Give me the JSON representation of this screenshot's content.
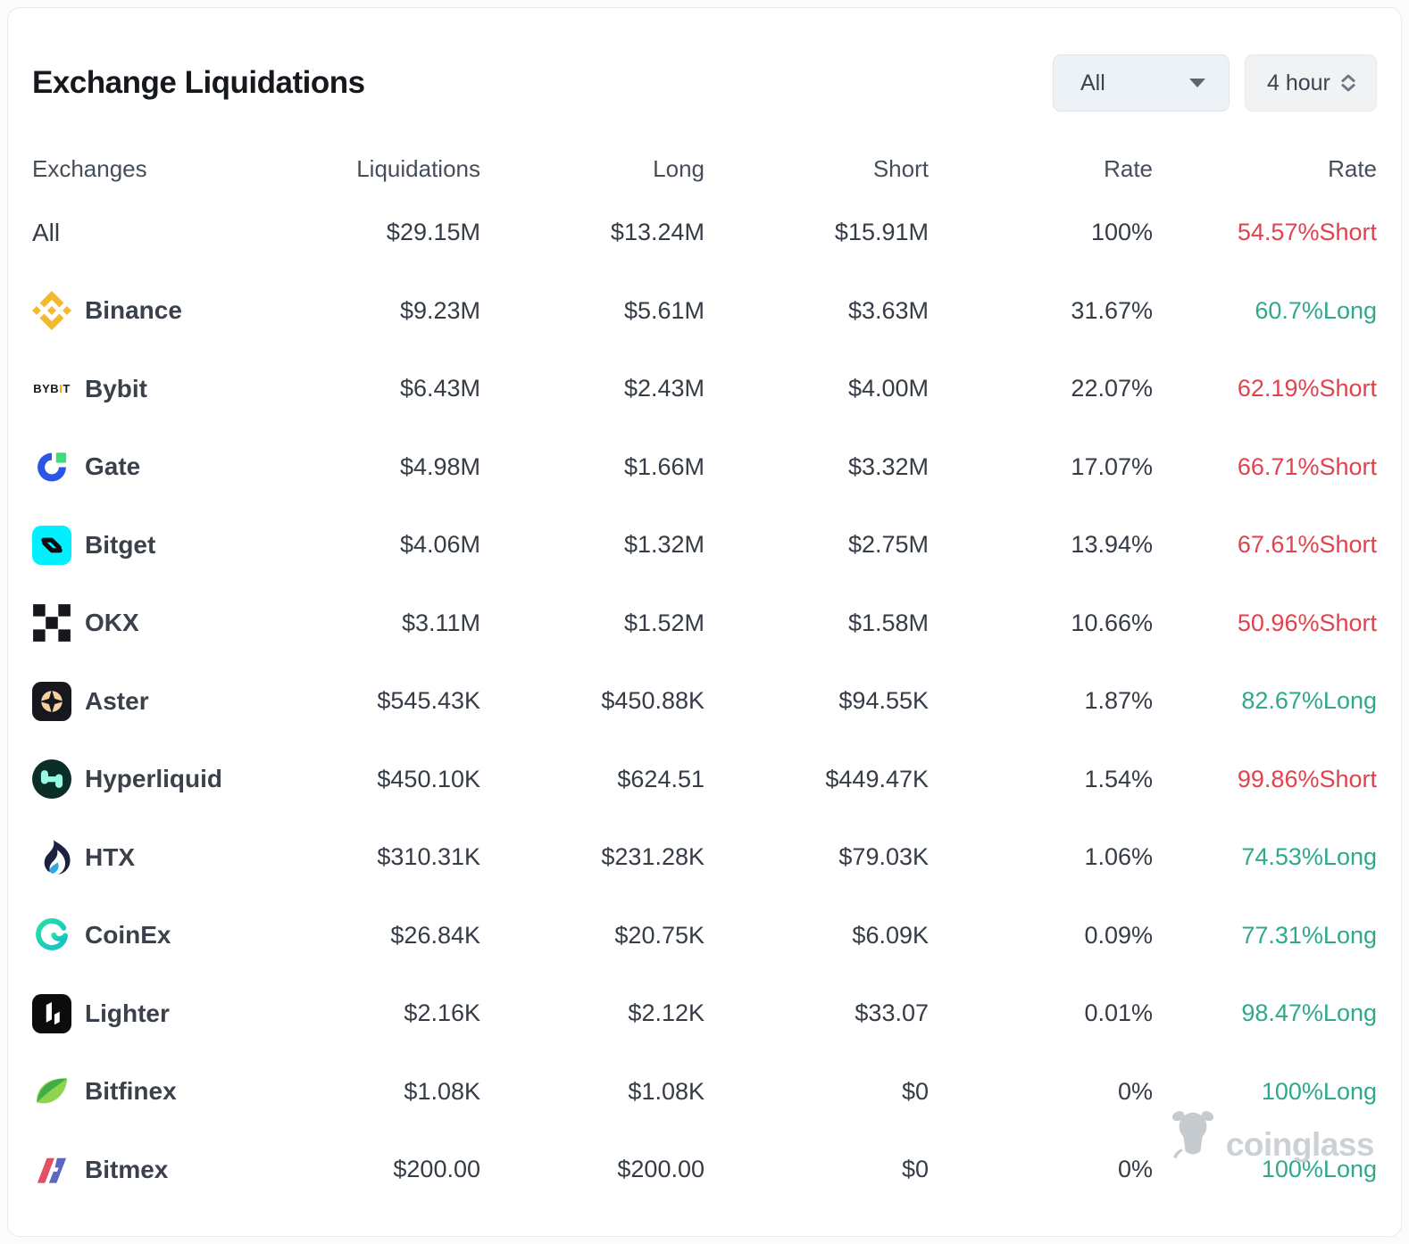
{
  "card": {
    "title": "Exchange Liquidations",
    "filters": {
      "symbol": {
        "value": "All",
        "icon": "chevron-down-icon"
      },
      "interval": {
        "value": "4 hour",
        "icon": "up-down-chevrons-icon"
      }
    },
    "watermark": {
      "label": "coinglass",
      "icon": "coinglass-bull-icon"
    }
  },
  "colors": {
    "long": "#2fa88c",
    "short": "#e2424e"
  },
  "table": {
    "headers": [
      "Exchanges",
      "Liquidations",
      "Long",
      "Short",
      "Rate",
      "Rate"
    ],
    "rows": [
      {
        "exchange": "All",
        "icon": null,
        "liquidations": "$29.15M",
        "long": "$13.24M",
        "short": "$15.91M",
        "rate": "100%",
        "side_rate": "54.57%Short",
        "side": "short"
      },
      {
        "exchange": "Binance",
        "icon": "binance-icon",
        "liquidations": "$9.23M",
        "long": "$5.61M",
        "short": "$3.63M",
        "rate": "31.67%",
        "side_rate": "60.7%Long",
        "side": "long"
      },
      {
        "exchange": "Bybit",
        "icon": "bybit-icon",
        "liquidations": "$6.43M",
        "long": "$2.43M",
        "short": "$4.00M",
        "rate": "22.07%",
        "side_rate": "62.19%Short",
        "side": "short"
      },
      {
        "exchange": "Gate",
        "icon": "gate-icon",
        "liquidations": "$4.98M",
        "long": "$1.66M",
        "short": "$3.32M",
        "rate": "17.07%",
        "side_rate": "66.71%Short",
        "side": "short"
      },
      {
        "exchange": "Bitget",
        "icon": "bitget-icon",
        "liquidations": "$4.06M",
        "long": "$1.32M",
        "short": "$2.75M",
        "rate": "13.94%",
        "side_rate": "67.61%Short",
        "side": "short"
      },
      {
        "exchange": "OKX",
        "icon": "okx-icon",
        "liquidations": "$3.11M",
        "long": "$1.52M",
        "short": "$1.58M",
        "rate": "10.66%",
        "side_rate": "50.96%Short",
        "side": "short"
      },
      {
        "exchange": "Aster",
        "icon": "aster-icon",
        "liquidations": "$545.43K",
        "long": "$450.88K",
        "short": "$94.55K",
        "rate": "1.87%",
        "side_rate": "82.67%Long",
        "side": "long"
      },
      {
        "exchange": "Hyperliquid",
        "icon": "hyperliquid-icon",
        "liquidations": "$450.10K",
        "long": "$624.51",
        "short": "$449.47K",
        "rate": "1.54%",
        "side_rate": "99.86%Short",
        "side": "short"
      },
      {
        "exchange": "HTX",
        "icon": "htx-icon",
        "liquidations": "$310.31K",
        "long": "$231.28K",
        "short": "$79.03K",
        "rate": "1.06%",
        "side_rate": "74.53%Long",
        "side": "long"
      },
      {
        "exchange": "CoinEx",
        "icon": "coinex-icon",
        "liquidations": "$26.84K",
        "long": "$20.75K",
        "short": "$6.09K",
        "rate": "0.09%",
        "side_rate": "77.31%Long",
        "side": "long"
      },
      {
        "exchange": "Lighter",
        "icon": "lighter-icon",
        "liquidations": "$2.16K",
        "long": "$2.12K",
        "short": "$33.07",
        "rate": "0.01%",
        "side_rate": "98.47%Long",
        "side": "long"
      },
      {
        "exchange": "Bitfinex",
        "icon": "bitfinex-icon",
        "liquidations": "$1.08K",
        "long": "$1.08K",
        "short": "$0",
        "rate": "0%",
        "side_rate": "100%Long",
        "side": "long"
      },
      {
        "exchange": "Bitmex",
        "icon": "bitmex-icon",
        "liquidations": "$200.00",
        "long": "$200.00",
        "short": "$0",
        "rate": "0%",
        "side_rate": "100%Long",
        "side": "long"
      }
    ]
  }
}
